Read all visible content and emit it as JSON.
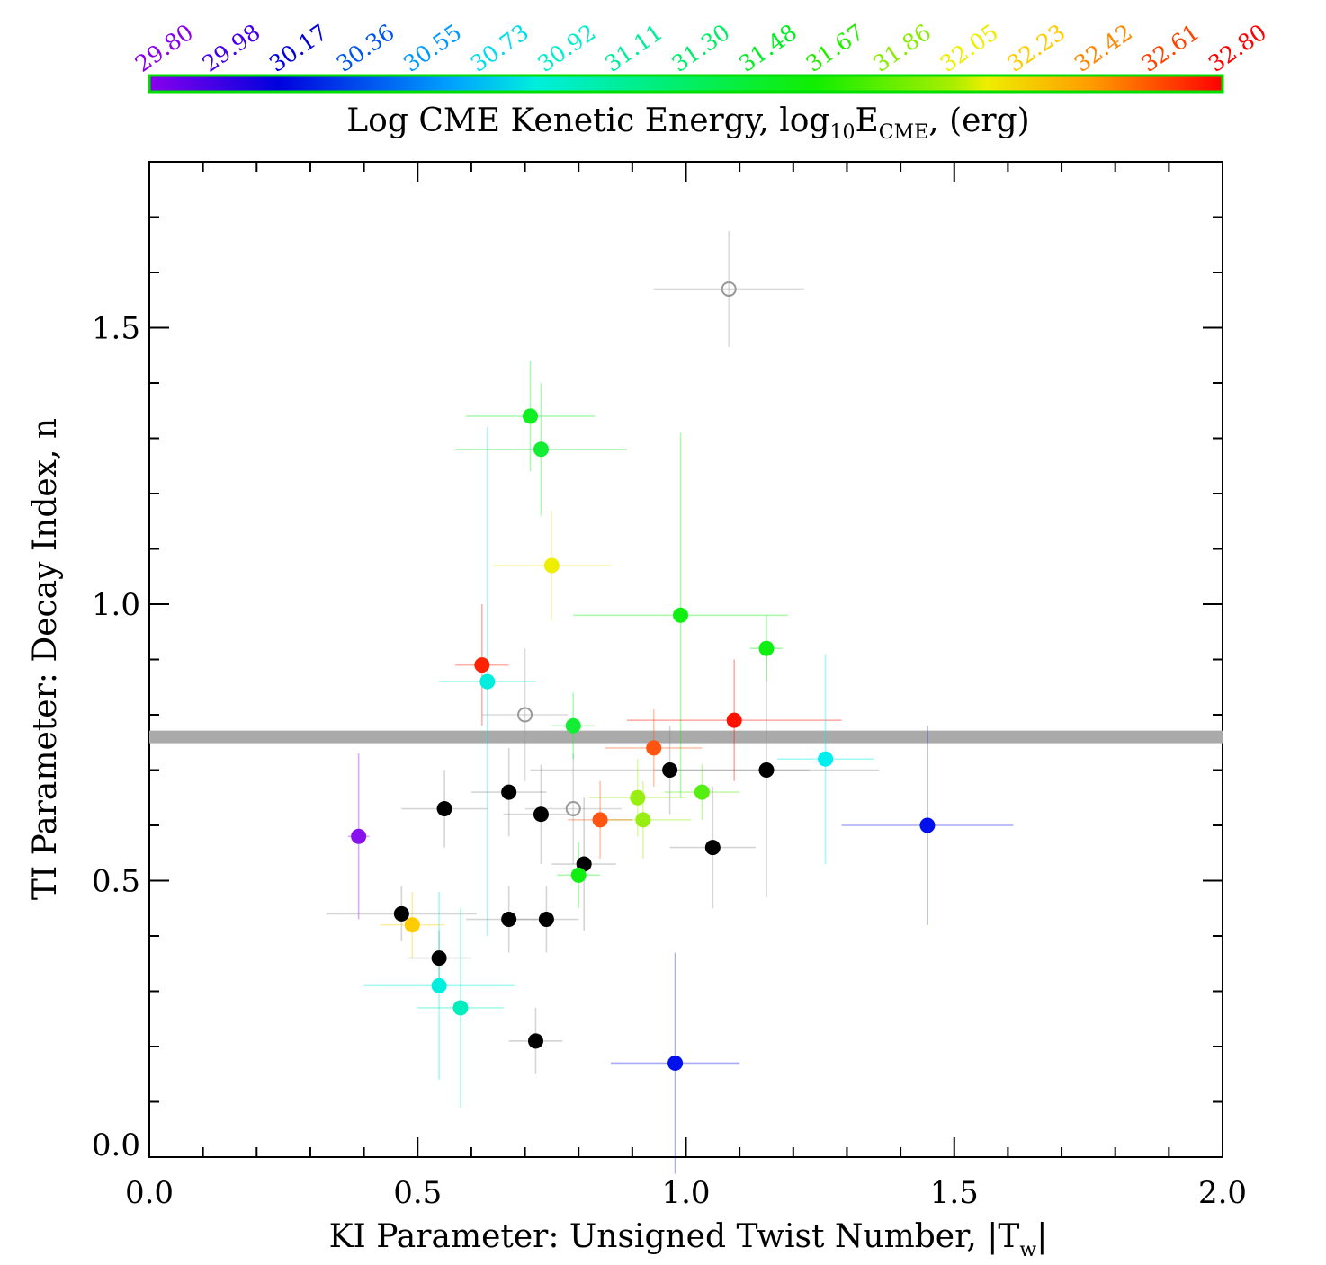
{
  "chart_data": {
    "type": "scatter",
    "xlabel": {
      "main": "KI Parameter: Unsigned Twist Number, |T",
      "sub": "w",
      "end": "|"
    },
    "ylabel": "TI Parameter: Decay Index, n",
    "xlim": [
      0.0,
      2.0
    ],
    "ylim": [
      0.0,
      1.8
    ],
    "x_ticks": [
      "0.0",
      "0.5",
      "1.0",
      "1.5",
      "2.0"
    ],
    "y_ticks": [
      "0.0",
      "0.5",
      "1.0",
      "1.5"
    ],
    "threshold_line": {
      "y": 0.76,
      "color": "#aaaaaa"
    },
    "colorbar": {
      "title": {
        "pre": "Log CME Kenetic Energy, log",
        "sub1": "10",
        "mid": "E",
        "sub2": "CME",
        "post": ", (erg)"
      },
      "min": 29.8,
      "max": 32.8,
      "ticks": [
        "29.80",
        "29.98",
        "30.17",
        "30.36",
        "30.55",
        "30.73",
        "30.92",
        "31.11",
        "31.30",
        "31.48",
        "31.67",
        "31.86",
        "32.05",
        "32.23",
        "32.42",
        "32.61",
        "32.80"
      ],
      "tick_colors": [
        "#8800ee",
        "#4400ee",
        "#0000dd",
        "#0055ee",
        "#0099ff",
        "#00ddee",
        "#00eecc",
        "#00ee99",
        "#00ee66",
        "#00ee22",
        "#22ee00",
        "#88ee00",
        "#eeee00",
        "#ffcc00",
        "#ff8800",
        "#ff4400",
        "#ff0000"
      ],
      "border_color": "#00dd00"
    },
    "points": [
      {
        "x": 1.08,
        "y": 1.57,
        "xerr": 0.14,
        "yerr": 0.105,
        "color": "#999999",
        "open": true
      },
      {
        "x": 0.7,
        "y": 0.8,
        "xerr": 0.08,
        "yerr": 0.12,
        "color": "#999999",
        "open": true
      },
      {
        "x": 0.79,
        "y": 0.63,
        "xerr": 0.09,
        "yerr": 0.1,
        "color": "#999999",
        "open": true
      },
      {
        "x": 0.71,
        "y": 1.34,
        "xerr": 0.12,
        "yerr": 0.1,
        "color": "#11ee22"
      },
      {
        "x": 0.73,
        "y": 1.28,
        "xerr": 0.16,
        "yerr": 0.12,
        "color": "#11ee33"
      },
      {
        "x": 0.75,
        "y": 1.07,
        "xerr": 0.11,
        "yerr": 0.1,
        "color": "#eeee00"
      },
      {
        "x": 0.99,
        "y": 0.98,
        "xerr": 0.2,
        "yerr": 0.33,
        "color": "#11ee11"
      },
      {
        "x": 1.15,
        "y": 0.92,
        "xerr": 0.03,
        "yerr": 0.06,
        "color": "#11ee11"
      },
      {
        "x": 0.62,
        "y": 0.89,
        "xerr": 0.05,
        "yerr": 0.11,
        "color": "#ff2200"
      },
      {
        "x": 0.63,
        "y": 0.86,
        "xerr": 0.09,
        "yerr": 0.46,
        "color": "#00eedd"
      },
      {
        "x": 0.79,
        "y": 0.78,
        "xerr": 0.04,
        "yerr": 0.06,
        "color": "#11ee33"
      },
      {
        "x": 1.09,
        "y": 0.79,
        "xerr": 0.2,
        "yerr": 0.11,
        "color": "#ff1100"
      },
      {
        "x": 0.94,
        "y": 0.74,
        "xerr": 0.09,
        "yerr": 0.07,
        "color": "#ff5511"
      },
      {
        "x": 1.26,
        "y": 0.72,
        "xerr": 0.09,
        "yerr": 0.19,
        "color": "#00eeee"
      },
      {
        "x": 0.97,
        "y": 0.7,
        "xerr": 0.26,
        "yerr": 0.08,
        "color": "#000000"
      },
      {
        "x": 1.15,
        "y": 0.7,
        "xerr": 0.21,
        "yerr": 0.23,
        "color": "#000000"
      },
      {
        "x": 1.03,
        "y": 0.66,
        "xerr": 0.07,
        "yerr": 0.05,
        "color": "#55ee11"
      },
      {
        "x": 0.67,
        "y": 0.66,
        "xerr": 0.07,
        "yerr": 0.08,
        "color": "#000000"
      },
      {
        "x": 0.91,
        "y": 0.65,
        "xerr": 0.09,
        "yerr": 0.07,
        "color": "#99ee11"
      },
      {
        "x": 0.55,
        "y": 0.63,
        "xerr": 0.08,
        "yerr": 0.07,
        "color": "#000000"
      },
      {
        "x": 0.73,
        "y": 0.62,
        "xerr": 0.07,
        "yerr": 0.09,
        "color": "#000000"
      },
      {
        "x": 0.92,
        "y": 0.61,
        "xerr": 0.09,
        "yerr": 0.07,
        "color": "#99ee11"
      },
      {
        "x": 0.84,
        "y": 0.61,
        "xerr": 0.06,
        "yerr": 0.07,
        "color": "#ff5511"
      },
      {
        "x": 1.45,
        "y": 0.6,
        "xerr": 0.16,
        "yerr": 0.18,
        "color": "#0011ee"
      },
      {
        "x": 0.39,
        "y": 0.58,
        "xerr": 0.02,
        "yerr": 0.15,
        "color": "#8811ee"
      },
      {
        "x": 1.05,
        "y": 0.56,
        "xerr": 0.08,
        "yerr": 0.11,
        "color": "#000000"
      },
      {
        "x": 0.81,
        "y": 0.53,
        "xerr": 0.06,
        "yerr": 0.12,
        "color": "#000000"
      },
      {
        "x": 0.8,
        "y": 0.51,
        "xerr": 0.04,
        "yerr": 0.06,
        "color": "#11ee11"
      },
      {
        "x": 0.47,
        "y": 0.44,
        "xerr": 0.14,
        "yerr": 0.05,
        "color": "#000000"
      },
      {
        "x": 0.67,
        "y": 0.43,
        "xerr": 0.08,
        "yerr": 0.06,
        "color": "#000000"
      },
      {
        "x": 0.74,
        "y": 0.43,
        "xerr": 0.06,
        "yerr": 0.06,
        "color": "#000000"
      },
      {
        "x": 0.49,
        "y": 0.42,
        "xerr": 0.06,
        "yerr": 0.06,
        "color": "#ffcc00"
      },
      {
        "x": 0.54,
        "y": 0.36,
        "xerr": 0.06,
        "yerr": 0.05,
        "color": "#000000"
      },
      {
        "x": 0.54,
        "y": 0.31,
        "xerr": 0.14,
        "yerr": 0.17,
        "color": "#00eedd"
      },
      {
        "x": 0.58,
        "y": 0.27,
        "xerr": 0.08,
        "yerr": 0.18,
        "color": "#00eebb"
      },
      {
        "x": 0.72,
        "y": 0.21,
        "xerr": 0.05,
        "yerr": 0.06,
        "color": "#000000"
      },
      {
        "x": 0.98,
        "y": 0.17,
        "xerr": 0.12,
        "yerr": 0.2,
        "color": "#0011ee"
      }
    ]
  }
}
